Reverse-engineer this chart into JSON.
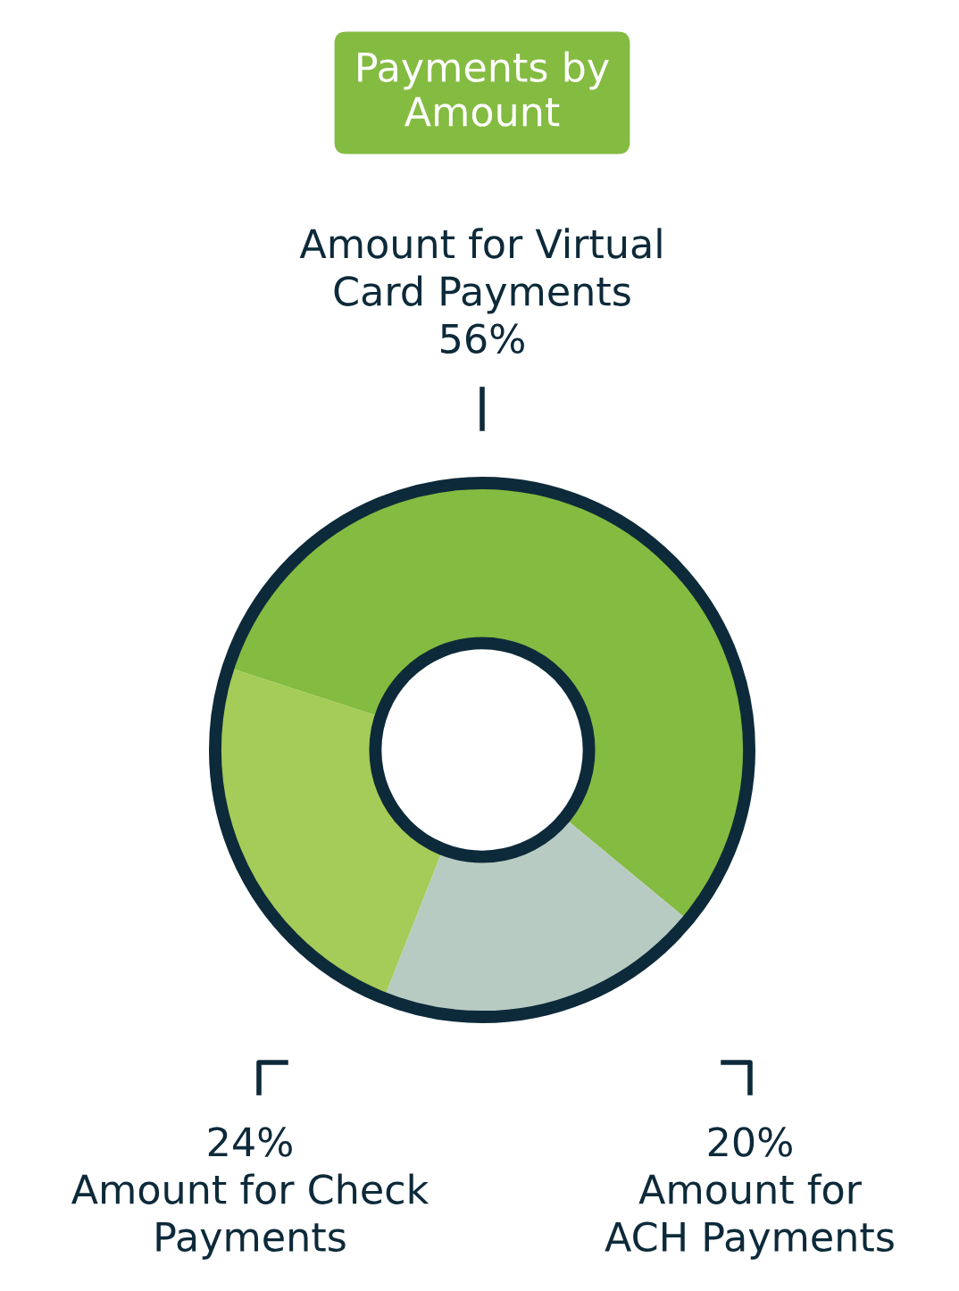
{
  "chart_data": {
    "type": "donut",
    "title": "Payments by\nAmount",
    "categories": [
      "Amount for Virtual\nCard Payments",
      "Amount for\nACH Payments",
      "Amount for Check\nPayments"
    ],
    "values": [
      56,
      20,
      24
    ],
    "colors": [
      "#84bb41",
      "#b8cbc3",
      "#a5cb58"
    ],
    "value_labels": [
      "56%",
      "20%",
      "24%"
    ]
  }
}
